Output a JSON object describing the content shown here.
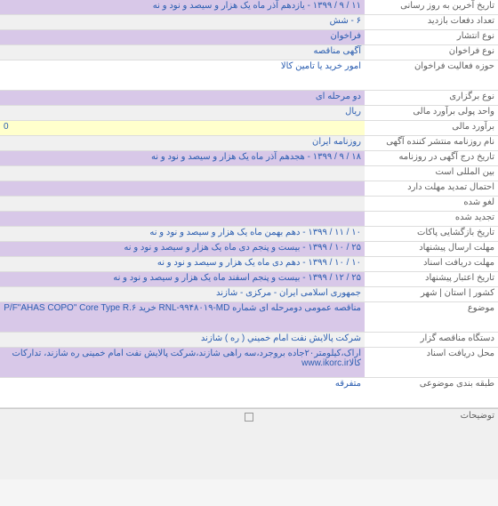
{
  "rows": [
    {
      "label": "تاریخ آخرین به روز رسانی",
      "value": "۱۱ / ۹ / ۱۳۹۹ - یازدهم آذر ماه یک هزار و سیصد و نود و نه",
      "bg": "purple"
    },
    {
      "label": "تعداد دفعات بازدید",
      "value": "۶ - شش",
      "bg": "gray"
    },
    {
      "label": "نوع انتشار",
      "value": "فراخوان",
      "bg": "purple"
    },
    {
      "label": "نوع فراخوان",
      "value": "آگهی مناقصه",
      "bg": "gray"
    },
    {
      "label": "حوزه فعالیت فراخوان",
      "value": "امور خرید یا تامین کالا",
      "bg": "white",
      "tall": true
    },
    {
      "label": "نوع برگزاری",
      "value": "دو مرحله ای",
      "bg": "purple"
    },
    {
      "label": "واحد پولی برآورد مالی",
      "value": "ریال",
      "bg": "gray"
    },
    {
      "label": "برآورد مالی",
      "value": "0",
      "bg": "yellow",
      "ltr": true
    },
    {
      "label": "نام روزنامه منتشر کننده آگهی",
      "value": "روزنامه ایران",
      "bg": "gray"
    },
    {
      "label": "تاریخ درج آگهی در روزنامه",
      "value": "۱۸ / ۹ / ۱۳۹۹ - هجدهم آذر ماه یک هزار و سیصد و نود و نه",
      "bg": "purple"
    },
    {
      "label": "بین المللی است",
      "value": "",
      "bg": "gray"
    },
    {
      "label": "احتمال تمدید مهلت دارد",
      "value": "",
      "bg": "purple"
    },
    {
      "label": "لغو شده",
      "value": "",
      "bg": "gray"
    },
    {
      "label": "تجدید شده",
      "value": "",
      "bg": "purple"
    },
    {
      "label": "تاریخ بازگشایی پاکات",
      "value": "۱۰ / ۱۱ / ۱۳۹۹ - دهم بهمن ماه یک هزار و سیصد و نود و نه",
      "bg": "gray"
    },
    {
      "label": "مهلت ارسال پیشنهاد",
      "value": "۲۵ / ۱۰ / ۱۳۹۹ - بیست و پنجم دی ماه یک هزار و سیصد و نود و نه",
      "bg": "purple"
    },
    {
      "label": "مهلت دریافت اسناد",
      "value": "۱۰ / ۱۰ / ۱۳۹۹ - دهم دی ماه یک هزار و سیصد و نود و نه",
      "bg": "gray"
    },
    {
      "label": "تاریخ اعتبار پیشنهاد",
      "value": "۲۵ / ۱۲ / ۱۳۹۹ - بیست و پنجم اسفند ماه یک هزار و سیصد و نود و نه",
      "bg": "purple"
    },
    {
      "label": "کشور | استان | شهر",
      "value": "جمهوری اسلامی ایران - مرکزی - شازند",
      "bg": "gray"
    },
    {
      "label": "موضوع",
      "value": "مناقصه عمومی دومرحله ای شماره RNL-۹۹۴۸۰۱۹-MD خرید P/F\"AHAS COPO\" Core Type R.۶",
      "bg": "purple",
      "tall": true
    },
    {
      "label": "دستگاه مناقصه گزار",
      "value": "شركت پالايش نفت امام خميني ( ره ) شازند",
      "bg": "gray"
    },
    {
      "label": "محل دریافت اسناد",
      "value": "اراک،کیلومتر۲۰جاده بروجرد،سه راهی شازند،شرکت پالایش نفت امام خمینی ره شازند، تدارکات کالاwww.ikorc.ir",
      "bg": "purple",
      "tall": true
    },
    {
      "label": "طبقه بندی موضوعی",
      "value": "متفرقه",
      "bg": "white",
      "tall": true
    }
  ],
  "footer": {
    "label": "توضیحات"
  },
  "colors": {
    "purple": "#d8c8e8",
    "gray": "#f0f0f0",
    "white": "#ffffff",
    "yellow": "#ffffcc",
    "link": "#2a5db0",
    "label": "#606060"
  }
}
